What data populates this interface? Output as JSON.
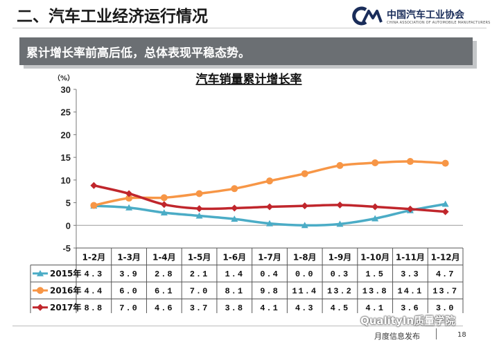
{
  "header": {
    "section_title": "二、汽车工业经济运行情况",
    "org_name": "中国汽车工业协会",
    "org_name_en": "CHINA ASSOCIATION OF AUTOMOBILE MANUFACTURERS"
  },
  "banner": {
    "text": "累计增长率前高后低，总体表现平稳态势。"
  },
  "chart_data": {
    "type": "line",
    "title": "汽车销量累计增长率",
    "ylabel": "（%）",
    "ylim": [
      -5,
      30
    ],
    "yticks": [
      30,
      25,
      20,
      15,
      10,
      5,
      0,
      -5
    ],
    "categories": [
      "1-2月",
      "1-3月",
      "1-4月",
      "1-5月",
      "1-6月",
      "1-7月",
      "1-8月",
      "1-9月",
      "1-10月",
      "1-11月",
      "1-12月"
    ],
    "series": [
      {
        "name": "2015年",
        "color": "#4bacc6",
        "marker": "triangle",
        "values": [
          4.3,
          3.9,
          2.8,
          2.1,
          1.4,
          0.4,
          0.0,
          0.3,
          1.5,
          3.3,
          4.7
        ],
        "labels": [
          "4.3",
          "3.9",
          "2.8",
          "2.1",
          "1.4",
          "0.4",
          "0.0",
          "0.3",
          "1.5",
          "3.3",
          "4.7"
        ]
      },
      {
        "name": "2016年",
        "color": "#f79646",
        "marker": "circle",
        "values": [
          4.4,
          6.0,
          6.1,
          7.0,
          8.1,
          9.8,
          11.4,
          13.2,
          13.8,
          14.1,
          13.7
        ],
        "labels": [
          "4.4",
          "6.0",
          "6.1",
          "7.0",
          "8.1",
          "9.8",
          "11.4",
          "13.2",
          "13.8",
          "14.1",
          "13.7"
        ]
      },
      {
        "name": "2017年",
        "color": "#c0262c",
        "marker": "diamond",
        "values": [
          8.8,
          7.0,
          4.6,
          3.7,
          3.8,
          4.1,
          4.3,
          4.5,
          4.1,
          3.6,
          3.0
        ],
        "labels": [
          "8.8",
          "7.0",
          "4.6",
          "3.7",
          "3.8",
          "4.1",
          "4.3",
          "4.5",
          "4.1",
          "3.6",
          "3.0"
        ]
      }
    ],
    "grid": false,
    "legend": "table-left"
  },
  "footer": {
    "watermark": "QualityIn质量学院",
    "label": "月度信息发布",
    "page_number": "18"
  }
}
